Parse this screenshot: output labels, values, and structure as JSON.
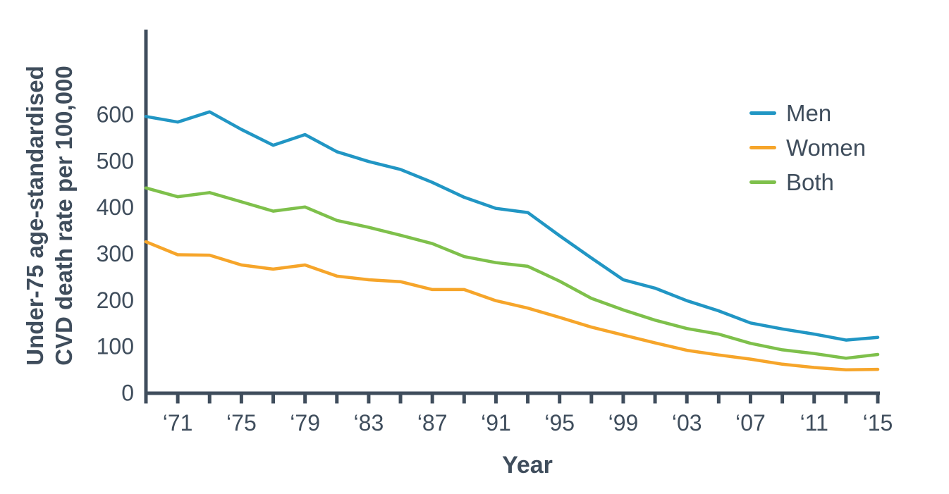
{
  "chart_data": {
    "type": "line",
    "title": "",
    "xlabel": "Year",
    "ylabel_line1": "Under-75 age-standardised",
    "ylabel_line2": "CVD death rate per 100,000",
    "axis_color": "#3f4d5c",
    "background_color": "#ffffff",
    "grid": false,
    "legend_position": "upper right",
    "xlim": [
      1969,
      2015
    ],
    "ylim": [
      0,
      780
    ],
    "y_ticks": [
      0,
      100,
      200,
      300,
      400,
      500,
      600
    ],
    "x": [
      1969,
      1971,
      1973,
      1975,
      1977,
      1979,
      1981,
      1983,
      1985,
      1987,
      1989,
      1991,
      1993,
      1995,
      1997,
      1999,
      2001,
      2003,
      2005,
      2007,
      2009,
      2011,
      2013,
      2015
    ],
    "x_ticks": [
      {
        "year": 1969,
        "label": ""
      },
      {
        "year": 1971,
        "label": "‘71"
      },
      {
        "year": 1973,
        "label": ""
      },
      {
        "year": 1975,
        "label": "‘75"
      },
      {
        "year": 1977,
        "label": ""
      },
      {
        "year": 1979,
        "label": "‘79"
      },
      {
        "year": 1981,
        "label": ""
      },
      {
        "year": 1983,
        "label": "‘83"
      },
      {
        "year": 1985,
        "label": ""
      },
      {
        "year": 1987,
        "label": "‘87"
      },
      {
        "year": 1989,
        "label": ""
      },
      {
        "year": 1991,
        "label": "‘91"
      },
      {
        "year": 1993,
        "label": ""
      },
      {
        "year": 1995,
        "label": "‘95"
      },
      {
        "year": 1997,
        "label": ""
      },
      {
        "year": 1999,
        "label": "‘99"
      },
      {
        "year": 2001,
        "label": ""
      },
      {
        "year": 2003,
        "label": "‘03"
      },
      {
        "year": 2005,
        "label": ""
      },
      {
        "year": 2007,
        "label": "‘07"
      },
      {
        "year": 2009,
        "label": ""
      },
      {
        "year": 2011,
        "label": "‘11"
      },
      {
        "year": 2013,
        "label": ""
      },
      {
        "year": 2015,
        "label": "‘15"
      }
    ],
    "series": [
      {
        "name": "Men",
        "color": "#2196c4",
        "values": [
          595,
          583,
          605,
          567,
          533,
          556,
          519,
          498,
          481,
          453,
          421,
          397,
          388,
          338,
          290,
          243,
          225,
          198,
          176,
          150,
          137,
          126,
          113,
          119
        ]
      },
      {
        "name": "Women",
        "color": "#f6a52a",
        "values": [
          325,
          297,
          296,
          275,
          266,
          275,
          251,
          243,
          239,
          222,
          222,
          198,
          182,
          162,
          141,
          124,
          107,
          91,
          81,
          72,
          61,
          54,
          49,
          50
        ]
      },
      {
        "name": "Both",
        "color": "#7ec04b",
        "values": [
          441,
          422,
          431,
          411,
          391,
          400,
          371,
          356,
          339,
          321,
          293,
          280,
          272,
          240,
          203,
          178,
          156,
          138,
          126,
          106,
          92,
          84,
          74,
          82
        ]
      }
    ]
  }
}
